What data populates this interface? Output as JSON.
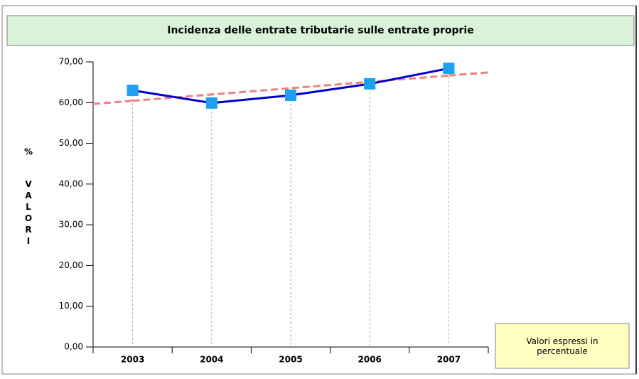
{
  "chart_data": {
    "type": "line",
    "title": "Incidenza delle entrate tributarie sulle entrate proprie",
    "ylabel_unit": "%",
    "ylabel": "VALORI",
    "note": "Valori espressi in percentuale",
    "categories": [
      "2003",
      "2004",
      "2005",
      "2006",
      "2007"
    ],
    "series": [
      {
        "color": "#0000cc",
        "marker_color": "#1ea0f0",
        "values": [
          63.0,
          59.9,
          61.8,
          64.6,
          68.4
        ]
      }
    ],
    "trendline": {
      "color": "#f08080",
      "values": [
        60.44,
        61.99,
        63.54,
        65.09,
        66.64
      ]
    },
    "ylim": [
      0,
      70
    ],
    "yticks": [
      {
        "value": 0,
        "label": "0,00"
      },
      {
        "value": 10,
        "label": "10,00"
      },
      {
        "value": 20,
        "label": "20,00"
      },
      {
        "value": 30,
        "label": "30,00"
      },
      {
        "value": 40,
        "label": "40,00"
      },
      {
        "value": 50,
        "label": "50,00"
      },
      {
        "value": 60,
        "label": "60,00"
      },
      {
        "value": 70,
        "label": "70,00"
      }
    ]
  }
}
